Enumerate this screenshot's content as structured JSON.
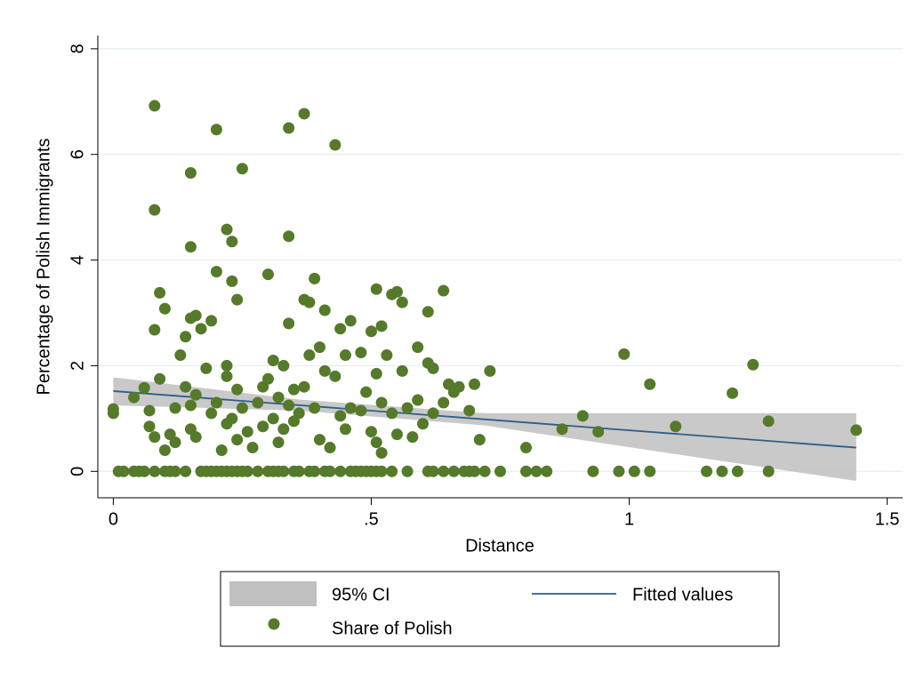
{
  "chart_data": {
    "type": "scatter",
    "x_label": "Distance",
    "y_label": "Percentage of Polish Immigrants",
    "xlim": [
      -0.03,
      1.53
    ],
    "ylim": [
      -0.5,
      8.25
    ],
    "xticks": [
      0,
      {
        "value": 0.5,
        "label": ".5"
      },
      1,
      1.5
    ],
    "yticks": [
      0,
      2,
      4,
      6,
      8
    ],
    "grid": true,
    "legend": "bottom",
    "series": [
      {
        "name": "95% CI",
        "type": "area",
        "color": "#c0c0c0",
        "x": [
          0,
          0.36,
          0.72,
          1.08,
          1.44
        ],
        "upper": [
          1.78,
          1.36,
          1.1,
          1.1,
          1.1
        ],
        "lower": [
          1.25,
          1.15,
          0.87,
          0.34,
          -0.18
        ]
      },
      {
        "name": "Fitted values",
        "type": "line",
        "color": "#2e5e8a",
        "x": [
          0,
          1.44
        ],
        "values": [
          1.52,
          0.45
        ]
      },
      {
        "name": "Share of Polish",
        "type": "scatter",
        "color": "#557a2a",
        "x": [
          0.01,
          0.02,
          0.04,
          0.05,
          0.06,
          0.08,
          0.1,
          0.11,
          0.12,
          0.14,
          0.17,
          0.18,
          0.19,
          0.2,
          0.21,
          0.22,
          0.23,
          0.24,
          0.25,
          0.26,
          0.28,
          0.3,
          0.31,
          0.32,
          0.33,
          0.35,
          0.36,
          0.38,
          0.39,
          0.41,
          0.42,
          0.44,
          0.46,
          0.47,
          0.48,
          0.49,
          0.5,
          0.51,
          0.52,
          0.54,
          0.57,
          0.61,
          0.62,
          0.64,
          0.66,
          0.68,
          0.69,
          0.7,
          0.72,
          0.75,
          0.8,
          0.82,
          0.84,
          0.93,
          0.98,
          1.01,
          1.04,
          1.15,
          1.18,
          1.21,
          1.27,
          0,
          0,
          0.04,
          0.06,
          0.07,
          0.07,
          0.08,
          0.08,
          0.08,
          0.08,
          0.09,
          0.09,
          0.1,
          0.1,
          0.11,
          0.12,
          0.12,
          0.13,
          0.14,
          0.14,
          0.15,
          0.15,
          0.15,
          0.15,
          0.15,
          0.16,
          0.16,
          0.16,
          0.17,
          0.18,
          0.19,
          0.19,
          0.2,
          0.2,
          0.2,
          0.21,
          0.22,
          0.22,
          0.22,
          0.22,
          0.23,
          0.23,
          0.23,
          0.24,
          0.24,
          0.24,
          0.25,
          0.25,
          0.26,
          0.27,
          0.28,
          0.29,
          0.29,
          0.3,
          0.3,
          0.31,
          0.31,
          0.32,
          0.32,
          0.33,
          0.33,
          0.34,
          0.34,
          0.34,
          0.34,
          0.35,
          0.35,
          0.36,
          0.37,
          0.37,
          0.37,
          0.38,
          0.38,
          0.39,
          0.39,
          0.4,
          0.4,
          0.41,
          0.41,
          0.42,
          0.43,
          0.43,
          0.44,
          0.44,
          0.45,
          0.45,
          0.46,
          0.46,
          0.48,
          0.48,
          0.49,
          0.5,
          0.5,
          0.51,
          0.51,
          0.51,
          0.52,
          0.52,
          0.52,
          0.53,
          0.54,
          0.54,
          0.55,
          0.55,
          0.56,
          0.56,
          0.57,
          0.58,
          0.59,
          0.59,
          0.6,
          0.61,
          0.61,
          0.62,
          0.62,
          0.64,
          0.64,
          0.65,
          0.66,
          0.67,
          0.69,
          0.7,
          0.71,
          0.73,
          0.8,
          0.87,
          0.91,
          0.94,
          0.99,
          1.04,
          1.09,
          1.2,
          1.24,
          1.27,
          1.44
        ],
        "values": [
          0,
          0,
          0,
          0,
          0,
          0,
          0,
          0,
          0,
          0,
          0,
          0,
          0,
          0,
          0,
          0,
          0,
          0,
          0,
          0,
          0,
          0,
          0,
          0,
          0,
          0,
          0,
          0,
          0,
          0,
          0,
          0,
          0,
          0,
          0,
          0,
          0,
          0,
          0,
          0,
          0,
          0,
          0,
          0,
          0,
          0,
          0,
          0,
          0,
          0,
          0,
          0,
          0,
          0,
          0,
          0,
          0,
          0,
          0,
          0,
          0,
          1.18,
          1.1,
          1.4,
          1.58,
          1.15,
          0.85,
          0.65,
          2.68,
          6.92,
          4.95,
          3.38,
          1.75,
          3.08,
          0.4,
          0.7,
          0.55,
          1.2,
          2.2,
          1.6,
          2.55,
          2.9,
          4.25,
          5.65,
          1.25,
          0.8,
          2.95,
          1.45,
          0.65,
          2.7,
          1.95,
          2.85,
          1.1,
          3.78,
          6.47,
          1.3,
          0.4,
          1.8,
          4.58,
          2.0,
          0.9,
          3.6,
          4.35,
          1.0,
          3.25,
          1.55,
          0.6,
          5.73,
          1.2,
          0.75,
          0.45,
          1.3,
          0.85,
          1.6,
          3.73,
          1.75,
          2.1,
          1.0,
          0.55,
          1.4,
          2.0,
          0.8,
          6.5,
          4.45,
          2.8,
          1.25,
          1.55,
          0.95,
          1.1,
          3.25,
          1.6,
          6.77,
          3.2,
          2.2,
          3.65,
          1.2,
          2.35,
          0.6,
          3.05,
          1.9,
          0.45,
          6.18,
          1.8,
          2.7,
          1.05,
          2.2,
          0.8,
          2.85,
          1.2,
          2.25,
          1.15,
          1.5,
          2.65,
          0.75,
          3.45,
          1.85,
          0.55,
          2.75,
          1.3,
          0.35,
          2.2,
          3.35,
          1.1,
          3.4,
          0.7,
          3.2,
          1.9,
          1.2,
          0.65,
          2.35,
          1.35,
          0.9,
          2.05,
          3.02,
          1.95,
          1.1,
          3.42,
          1.3,
          1.65,
          1.5,
          1.6,
          1.15,
          1.65,
          0.6,
          1.9,
          0.45,
          0.8,
          1.05,
          0.75,
          2.22,
          1.65,
          0.85,
          1.48,
          2.02,
          0.95,
          0.78
        ]
      }
    ]
  }
}
